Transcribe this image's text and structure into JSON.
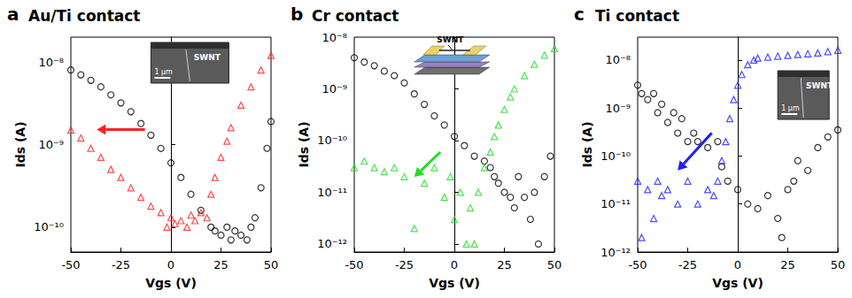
{
  "chart_data": [
    {
      "type": "scatter",
      "panel_label": "a",
      "title": "Au/Ti contact",
      "x_label": "Vgs (V)",
      "y_label": "Ids (A)",
      "log": "y",
      "grid": false,
      "annotations": [
        "SWNT",
        "1 μm"
      ],
      "xlim": [
        -50,
        50
      ],
      "xticks": [
        -50,
        -25,
        0,
        25,
        50
      ],
      "ylim": [
        5e-11,
        2e-08
      ],
      "yticks": [
        {
          "value": 1e-10,
          "label": "10⁻¹⁰"
        },
        {
          "value": 1e-09,
          "label": "10⁻⁹"
        },
        {
          "value": 1e-08,
          "label": "10⁻⁸"
        }
      ],
      "series": [
        {
          "color": "#000000",
          "marker": "circle",
          "x": [
            -50,
            -45,
            -40,
            -35,
            -30,
            -25,
            -20,
            -15,
            -10,
            -5,
            0,
            5,
            10,
            15,
            20,
            22,
            25,
            28,
            30,
            32,
            35,
            38,
            40,
            42,
            45,
            48,
            50
          ],
          "values": [
            8e-09,
            7e-09,
            6e-09,
            5e-09,
            4e-09,
            3.2e-09,
            2.5e-09,
            1.8e-09,
            1.3e-09,
            9e-10,
            6e-10,
            4e-10,
            2.5e-10,
            1.6e-10,
            1e-10,
            9e-11,
            8e-11,
            1e-10,
            7e-11,
            9e-11,
            8e-11,
            7e-11,
            1e-10,
            1.3e-10,
            3e-10,
            9e-10,
            1.9e-09
          ]
        },
        {
          "color": "#ff2020",
          "marker": "triangle",
          "x": [
            -50,
            -45,
            -40,
            -35,
            -30,
            -25,
            -20,
            -15,
            -10,
            -5,
            -2,
            0,
            2,
            5,
            8,
            10,
            12,
            15,
            18,
            20,
            22,
            25,
            28,
            30,
            35,
            40,
            45,
            50
          ],
          "values": [
            1.5e-09,
            1.2e-09,
            9e-10,
            7e-10,
            5e-10,
            4e-10,
            3e-10,
            2.3e-10,
            1.8e-10,
            1.5e-10,
            1e-10,
            1.3e-10,
            1.1e-10,
            1.2e-10,
            1e-10,
            1.4e-10,
            1.2e-10,
            1.5e-10,
            1.3e-10,
            2.5e-10,
            4e-10,
            7e-10,
            1.1e-09,
            1.6e-09,
            3e-09,
            5e-09,
            8e-09,
            1.2e-08
          ]
        }
      ]
    },
    {
      "type": "scatter",
      "panel_label": "b",
      "title": "Cr contact",
      "x_label": "Vgs (V)",
      "y_label": "Ids (A)",
      "log": "y",
      "grid": false,
      "annotations": [
        "SWNT"
      ],
      "xlim": [
        -50,
        50
      ],
      "xticks": [
        -50,
        -25,
        0,
        25,
        50
      ],
      "ylim": [
        7e-13,
        1e-08
      ],
      "yticks": [
        {
          "value": 1e-12,
          "label": "10⁻¹²"
        },
        {
          "value": 1e-11,
          "label": "10⁻¹¹"
        },
        {
          "value": 1e-10,
          "label": "10⁻¹⁰"
        },
        {
          "value": 1e-09,
          "label": "10⁻⁹"
        },
        {
          "value": 1e-08,
          "label": "10⁻⁸"
        }
      ],
      "series": [
        {
          "color": "#000000",
          "marker": "circle",
          "x": [
            -50,
            -45,
            -40,
            -35,
            -30,
            -25,
            -20,
            -15,
            -10,
            -5,
            0,
            5,
            10,
            15,
            18,
            20,
            22,
            25,
            28,
            30,
            32,
            35,
            38,
            40,
            42,
            45,
            48
          ],
          "values": [
            4e-09,
            3.3e-09,
            2.8e-09,
            2.2e-09,
            1.8e-09,
            1.3e-09,
            8e-10,
            5e-10,
            3e-10,
            2e-10,
            1.2e-10,
            8e-11,
            5e-11,
            4e-11,
            3e-11,
            2e-11,
            1.5e-11,
            1e-11,
            8e-12,
            5e-12,
            2e-11,
            8e-12,
            3e-12,
            1e-11,
            1e-12,
            2e-11,
            5e-11
          ]
        },
        {
          "color": "#22dd22",
          "marker": "triangle",
          "x": [
            -50,
            -45,
            -40,
            -35,
            -30,
            -25,
            -20,
            -15,
            -10,
            -5,
            -2,
            0,
            3,
            6,
            8,
            10,
            12,
            15,
            18,
            20,
            22,
            25,
            28,
            30,
            35,
            40,
            45,
            50
          ],
          "values": [
            3e-11,
            4e-11,
            3e-11,
            2.5e-11,
            3e-11,
            2e-11,
            2e-12,
            1.5e-11,
            3e-11,
            8e-12,
            2e-11,
            3e-12,
            1e-11,
            1e-12,
            5e-12,
            1e-12,
            1e-11,
            3e-11,
            6e-11,
            1.2e-10,
            2e-10,
            4e-10,
            7e-10,
            1e-09,
            1.8e-09,
            3e-09,
            4.5e-09,
            6e-09
          ]
        }
      ]
    },
    {
      "type": "scatter",
      "panel_label": "c",
      "title": "Ti contact",
      "x_label": "Vgs (V)",
      "y_label": "Ids (A)",
      "log": "y",
      "grid": false,
      "annotations": [
        "SWNT",
        "1 μm"
      ],
      "xlim": [
        -50,
        50
      ],
      "xticks": [
        -50,
        -25,
        0,
        25,
        50
      ],
      "ylim": [
        1e-12,
        3e-08
      ],
      "yticks": [
        {
          "value": 1e-12,
          "label": "10⁻¹²"
        },
        {
          "value": 1e-11,
          "label": "10⁻¹¹"
        },
        {
          "value": 1e-10,
          "label": "10⁻¹⁰"
        },
        {
          "value": 1e-09,
          "label": "10⁻⁹"
        },
        {
          "value": 1e-08,
          "label": "10⁻⁸"
        }
      ],
      "series": [
        {
          "color": "#000000",
          "marker": "circle",
          "x": [
            -50,
            -48,
            -45,
            -42,
            -40,
            -38,
            -35,
            -32,
            -30,
            -28,
            -25,
            -22,
            -20,
            -15,
            -10,
            -8,
            -5,
            0,
            5,
            10,
            15,
            20,
            22,
            25,
            28,
            30,
            35,
            40,
            45,
            50
          ],
          "values": [
            3e-09,
            2e-09,
            1.5e-09,
            2e-09,
            8e-10,
            1.2e-09,
            5e-10,
            8e-10,
            3e-10,
            6e-10,
            2e-10,
            3e-10,
            2e-10,
            1.5e-10,
            2e-10,
            6e-11,
            3e-11,
            2e-11,
            1e-11,
            8e-12,
            1.5e-11,
            5e-12,
            2e-12,
            2e-11,
            3e-11,
            8e-11,
            5e-11,
            1.5e-10,
            2.5e-10,
            3.5e-10
          ]
        },
        {
          "color": "#1f1fff",
          "marker": "triangle",
          "x": [
            -50,
            -48,
            -45,
            -42,
            -40,
            -38,
            -35,
            -30,
            -25,
            -20,
            -15,
            -12,
            -10,
            -8,
            -6,
            -4,
            -2,
            0,
            2,
            5,
            8,
            10,
            15,
            20,
            25,
            30,
            35,
            40,
            45,
            50
          ],
          "values": [
            3e-11,
            2e-12,
            2e-11,
            5e-12,
            3e-11,
            1.5e-11,
            2e-11,
            1e-11,
            3e-11,
            1e-11,
            2e-11,
            1.5e-11,
            3e-11,
            8e-11,
            2e-10,
            6e-10,
            1.5e-09,
            3e-09,
            5e-09,
            8e-09,
            1e-08,
            1.1e-08,
            1.15e-08,
            1.2e-08,
            1.25e-08,
            1.3e-08,
            1.35e-08,
            1.4e-08,
            1.5e-08,
            1.6e-08
          ]
        }
      ]
    }
  ]
}
